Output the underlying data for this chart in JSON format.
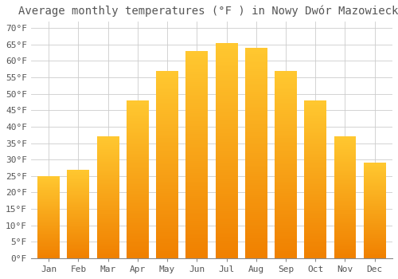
{
  "title": "Average monthly temperatures (°F ) in Nowy Dwór Mazowiecki",
  "months": [
    "Jan",
    "Feb",
    "Mar",
    "Apr",
    "May",
    "Jun",
    "Jul",
    "Aug",
    "Sep",
    "Oct",
    "Nov",
    "Dec"
  ],
  "values": [
    25,
    27,
    37,
    48,
    57,
    63,
    65.5,
    64,
    57,
    48,
    37,
    29
  ],
  "bar_color_top": "#FFC020",
  "bar_color_bottom": "#F08000",
  "background_color": "#FFFFFF",
  "grid_color": "#CCCCCC",
  "text_color": "#555555",
  "ylim": [
    0,
    72
  ],
  "yticks": [
    0,
    5,
    10,
    15,
    20,
    25,
    30,
    35,
    40,
    45,
    50,
    55,
    60,
    65,
    70
  ],
  "ylabel_suffix": "°F",
  "title_fontsize": 10,
  "tick_fontsize": 8,
  "font_family": "monospace",
  "bar_width": 0.75
}
